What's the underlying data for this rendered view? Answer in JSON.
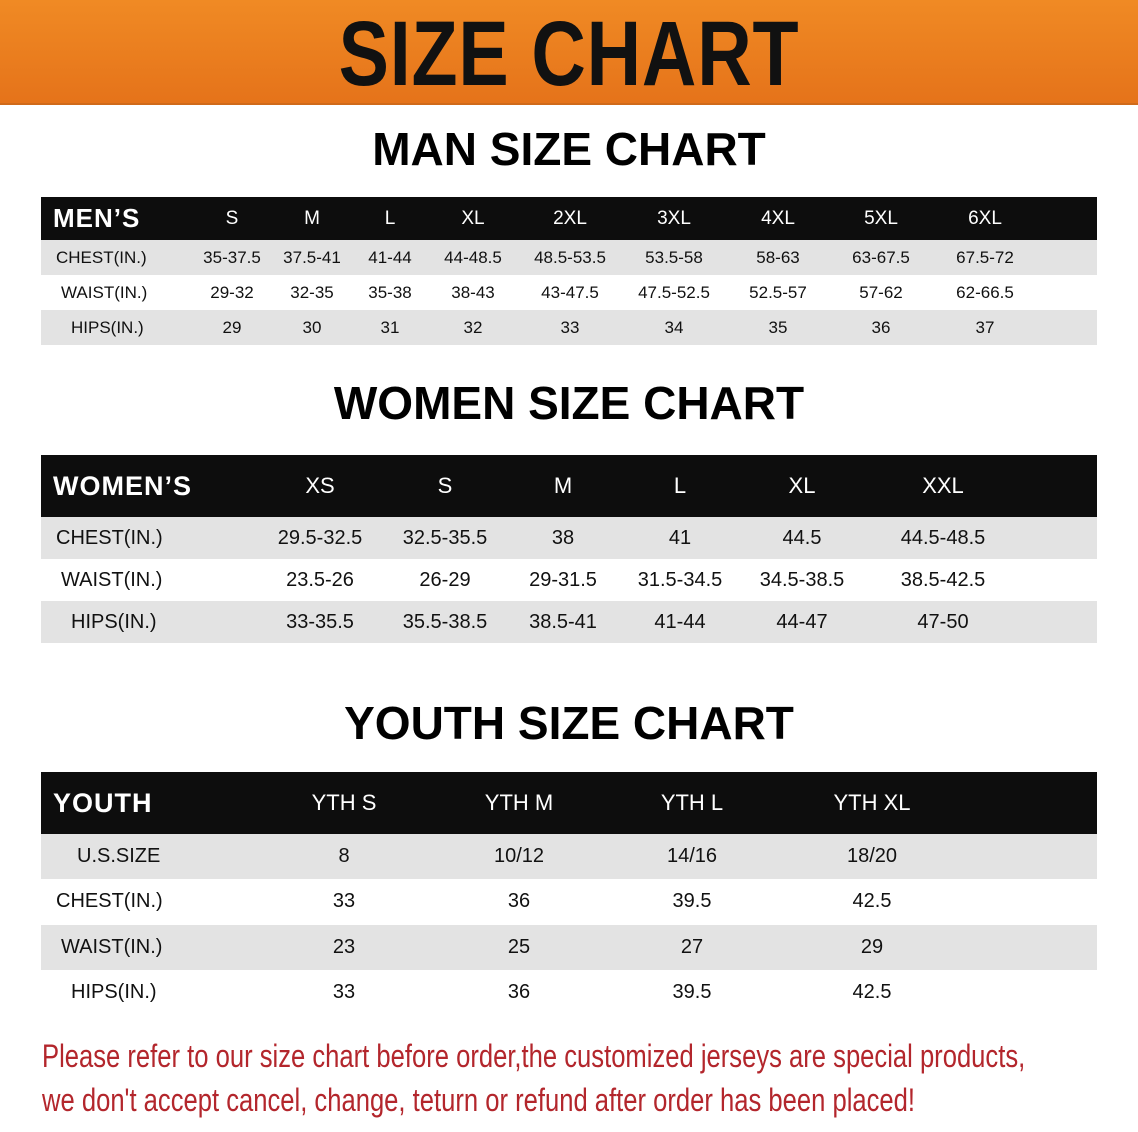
{
  "banner": {
    "title": "SIZE CHART",
    "color": "#e87a1e"
  },
  "men": {
    "title": "MAN SIZE CHART",
    "header_label": "MEN’S",
    "columns": [
      "S",
      "M",
      "L",
      "XL",
      "2XL",
      "3XL",
      "4XL",
      "5XL",
      "6XL"
    ],
    "rows": [
      {
        "label": "CHEST(IN.)",
        "values": [
          "35-37.5",
          "37.5-41",
          "41-44",
          "44-48.5",
          "48.5-53.5",
          "53.5-58",
          "58-63",
          "63-67.5",
          "67.5-72"
        ]
      },
      {
        "label": "WAIST(IN.)",
        "values": [
          "29-32",
          "32-35",
          "35-38",
          "38-43",
          "43-47.5",
          "47.5-52.5",
          "52.5-57",
          "57-62",
          "62-66.5"
        ]
      },
      {
        "label": "HIPS(IN.)",
        "values": [
          "29",
          "30",
          "31",
          "32",
          "33",
          "34",
          "35",
          "36",
          "37"
        ]
      }
    ]
  },
  "women": {
    "title": "WOMEN SIZE CHART",
    "header_label": "WOMEN’S",
    "columns": [
      "XS",
      "S",
      "M",
      "L",
      "XL",
      "XXL"
    ],
    "rows": [
      {
        "label": "CHEST(IN.)",
        "values": [
          "29.5-32.5",
          "32.5-35.5",
          "38",
          "41",
          "44.5",
          "44.5-48.5"
        ]
      },
      {
        "label": "WAIST(IN.)",
        "values": [
          "23.5-26",
          "26-29",
          "29-31.5",
          "31.5-34.5",
          "34.5-38.5",
          "38.5-42.5"
        ]
      },
      {
        "label": "HIPS(IN.)",
        "values": [
          "33-35.5",
          "35.5-38.5",
          "38.5-41",
          "41-44",
          "44-47",
          "47-50"
        ]
      }
    ]
  },
  "youth": {
    "title": "YOUTH SIZE CHART",
    "header_label": "YOUTH",
    "columns": [
      "YTH S",
      "YTH M",
      "YTH L",
      "YTH XL"
    ],
    "rows": [
      {
        "label": "U.S.SIZE",
        "values": [
          "8",
          "10/12",
          "14/16",
          "18/20"
        ]
      },
      {
        "label": "CHEST(IN.)",
        "values": [
          "33",
          "36",
          "39.5",
          "42.5"
        ]
      },
      {
        "label": "WAIST(IN.)",
        "values": [
          "23",
          "25",
          "27",
          "29"
        ]
      },
      {
        "label": "HIPS(IN.)",
        "values": [
          "33",
          "36",
          "39.5",
          "42.5"
        ]
      }
    ]
  },
  "notice": {
    "line1": "Please refer to our size chart before order,the customized jerseys are special products,",
    "line2": "we don't accept cancel, change, teturn or refund after order has been placed!",
    "color": "#b3262c"
  }
}
